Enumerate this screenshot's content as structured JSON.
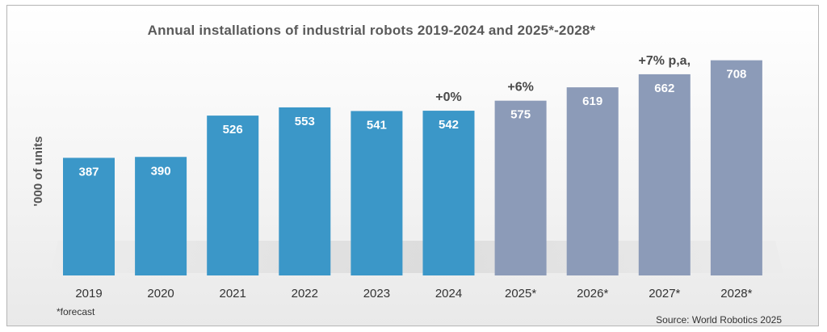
{
  "chart_data": {
    "type": "bar",
    "title": "Annual installations of industrial robots 2019-2024 and 2025*-2028*",
    "ylabel": "'000 of units",
    "categories": [
      "2019",
      "2020",
      "2021",
      "2022",
      "2023",
      "2024",
      "2025*",
      "2026*",
      "2027*",
      "2028*"
    ],
    "values": [
      387,
      390,
      526,
      553,
      541,
      542,
      575,
      619,
      662,
      708
    ],
    "forecast_from_index": 6,
    "ylim": [
      0,
      800
    ],
    "grid": false,
    "colors": {
      "actual": "#3b97c8",
      "forecast": "#8c9bb8"
    },
    "annotations": [
      {
        "text": "+0%",
        "category": "2024"
      },
      {
        "text": "+6%",
        "category": "2025*"
      },
      {
        "text": "+7% p,a,",
        "category": "2027*"
      }
    ],
    "footnote": "*forecast",
    "source": "Source: World Robotics 2025"
  }
}
